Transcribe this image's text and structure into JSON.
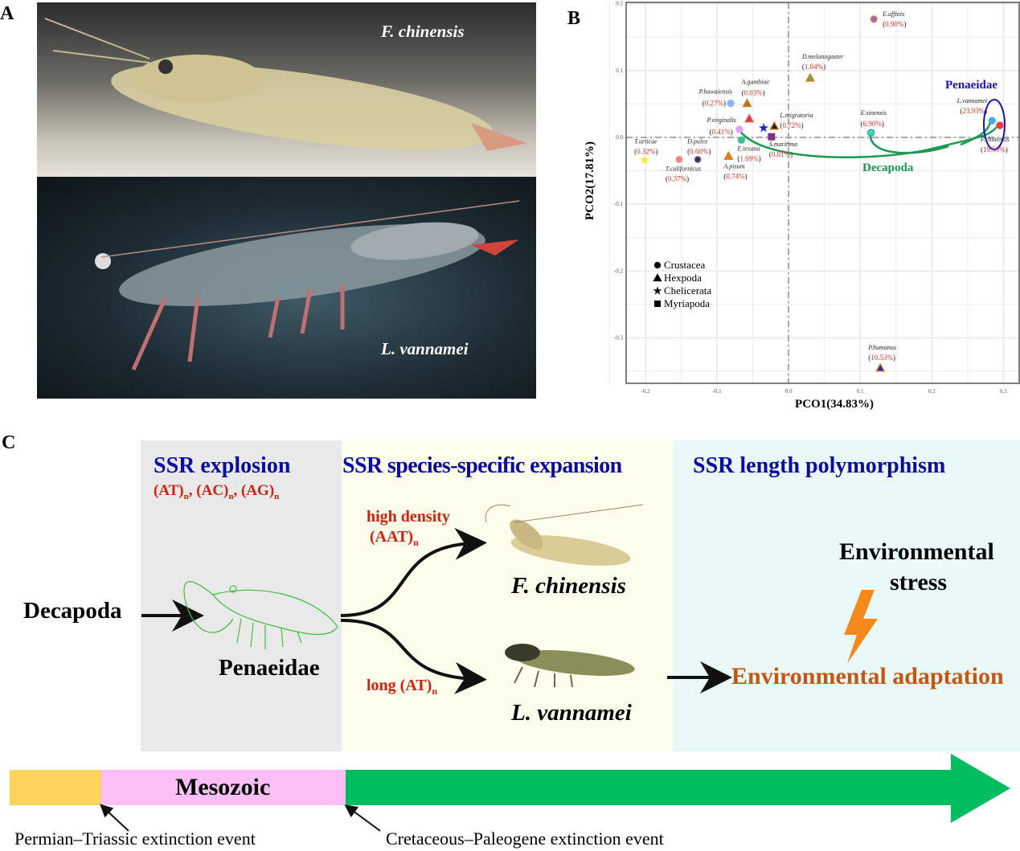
{
  "panels": {
    "a": "A",
    "b": "B",
    "c": "C"
  },
  "panel_a": {
    "top_caption": "F. chinensis",
    "bottom_caption": "L. vannamei"
  },
  "chart_data": {
    "type": "scatter",
    "xlabel": "PCO1(34.83%)",
    "ylabel": "PCO2(17.81%)",
    "xlim": [
      -0.227,
      0.322
    ],
    "ylim": [
      -0.368,
      0.202
    ],
    "xticks": [
      "-0.2",
      "-0.1",
      "0.0",
      "0.1",
      "0.2",
      "0.3"
    ],
    "xtick_values": [
      -0.2,
      -0.1,
      0,
      0.1,
      0.2,
      0.3
    ],
    "yticks": [
      "0.2",
      "0.1",
      "0.0",
      "-0.1",
      "-0.2",
      "-0.3"
    ],
    "ytick_values": [
      0.2,
      0.1,
      0,
      -0.1,
      -0.2,
      -0.3
    ],
    "grid": true,
    "legend": {
      "placement": "bottom-left",
      "entries": [
        {
          "label": "Crustacea",
          "shape": "circle"
        },
        {
          "label": "Hexpoda",
          "shape": "triangle"
        },
        {
          "label": "Chelicerata",
          "shape": "star"
        },
        {
          "label": "Myriapoda",
          "shape": "square"
        }
      ]
    },
    "points": [
      {
        "label": "E.affinis",
        "pct": "0.90%",
        "x": 0.119,
        "y": 0.177,
        "shape": "circle",
        "fill": "#e040d0",
        "stroke": "#7cbf3a"
      },
      {
        "label": "D.melanogaster",
        "pct": "1.04%",
        "x": 0.03,
        "y": 0.089,
        "shape": "triangle",
        "fill": "#8a9a4a",
        "stroke": "#e07a20"
      },
      {
        "label": "P.hawaiensis",
        "pct": "0.27%",
        "x": -0.081,
        "y": 0.051,
        "shape": "circle",
        "fill": "#8fb4f5",
        "stroke": "#8fb4f5"
      },
      {
        "label": "A.gambiae",
        "pct": "0.03%",
        "x": -0.058,
        "y": 0.051,
        "shape": "triangle",
        "fill": "#9a7a2a",
        "stroke": "#e07a20"
      },
      {
        "label": "",
        "pct": "",
        "x": -0.055,
        "y": 0.028,
        "shape": "triangle",
        "fill": "#e0306a",
        "stroke": "#f06040"
      },
      {
        "label": "",
        "pct": "",
        "x": -0.035,
        "y": 0.014,
        "shape": "star",
        "fill": "#1020e0",
        "stroke": "#1020e0"
      },
      {
        "label": "L.migratoria",
        "pct": "0.72%",
        "x": -0.02,
        "y": 0.017,
        "shape": "triangle",
        "fill": "#222222",
        "stroke": "#e07a20"
      },
      {
        "label": "P.virginalis",
        "pct": "0.41%",
        "x": -0.069,
        "y": 0.012,
        "shape": "circle",
        "fill": "#e0a0f0",
        "stroke": "#e0a0f0"
      },
      {
        "label": "S.maritima",
        "pct": "0.81%",
        "x": -0.024,
        "y": 0.001,
        "shape": "square",
        "fill": "#8a2a8a",
        "stroke": "#8a2a8a"
      },
      {
        "label": "E.texana",
        "pct": "1.69%",
        "x": -0.066,
        "y": -0.004,
        "shape": "circle",
        "fill": "#40c090",
        "stroke": "#40c090"
      },
      {
        "label": "A.pisum",
        "pct": "0.74%",
        "x": -0.084,
        "y": -0.028,
        "shape": "triangle",
        "fill": "#e07a20",
        "stroke": "#e07a20"
      },
      {
        "label": "T.urticae",
        "pct": "0.32%",
        "x": -0.201,
        "y": -0.034,
        "shape": "star",
        "fill": "#f5f020",
        "stroke": "#f5f020"
      },
      {
        "label": "T.californicus",
        "pct": "0.37%",
        "x": -0.153,
        "y": -0.033,
        "shape": "circle",
        "fill": "#f08080",
        "stroke": "#f0a0c0"
      },
      {
        "label": "D.pulex",
        "pct": "0.60%",
        "x": -0.127,
        "y": -0.033,
        "shape": "circle",
        "fill": "#333333",
        "stroke": "#b080e0"
      },
      {
        "label": "E.sinensis",
        "pct": "6.90%",
        "x": 0.115,
        "y": 0.007,
        "shape": "circle",
        "fill": "#30e0c0",
        "stroke": "#20a080"
      },
      {
        "label": "L.vannamei",
        "pct": "23.93%",
        "x": 0.284,
        "y": 0.025,
        "shape": "circle",
        "fill": "#40b0e8",
        "stroke": "#40b0e8"
      },
      {
        "label": "F.chinensis",
        "pct": "19.50%",
        "x": 0.295,
        "y": 0.018,
        "shape": "circle",
        "fill": "#f03a3a",
        "stroke": "#f03a3a"
      },
      {
        "label": "P.humanus",
        "pct": "10.53%",
        "x": 0.128,
        "y": -0.345,
        "shape": "triangle",
        "fill": "#2a2aa0",
        "stroke": "#e07a20"
      }
    ],
    "annotations": [
      {
        "text": "Penaeidae",
        "color": "#1414c8"
      },
      {
        "text": "Decapoda",
        "color": "#1a9a50"
      }
    ]
  },
  "panel_c": {
    "stage1": {
      "title": "SSR explosion",
      "motifs": [
        {
          "m": "(AT)",
          "s": "n"
        },
        {
          "m": "(AC)",
          "s": "n"
        },
        {
          "m": "(AG)",
          "s": "n"
        }
      ],
      "bg": "#e9e9e9"
    },
    "stage2": {
      "title": "SSR species-specific expansion",
      "bg": "#fdfdec"
    },
    "stage3": {
      "title": "SSR length polymorphism",
      "bg": "#e8f9f8"
    },
    "left_label": "Decapoda",
    "center_label": "Penaeidae",
    "upper_branch": {
      "line1": "high density",
      "motif": "(AAT)",
      "sub": "n",
      "species": "F. chinensis"
    },
    "lower_branch": {
      "motif": "long (AT)",
      "sub": "n",
      "species": "L. vannamei"
    },
    "stress": {
      "line1": "Environmental",
      "line2": "stress"
    },
    "adaptation": "Environmental adaptation",
    "timeline": {
      "era": "Mesozoic",
      "event1": "Permian–Triassic extinction event",
      "event2": "Cretaceous–Paleogene extinction event",
      "colors": {
        "permian": "#fdd35e",
        "mesozoic": "#fbbef6",
        "cenozoic": "#00be60"
      }
    }
  }
}
